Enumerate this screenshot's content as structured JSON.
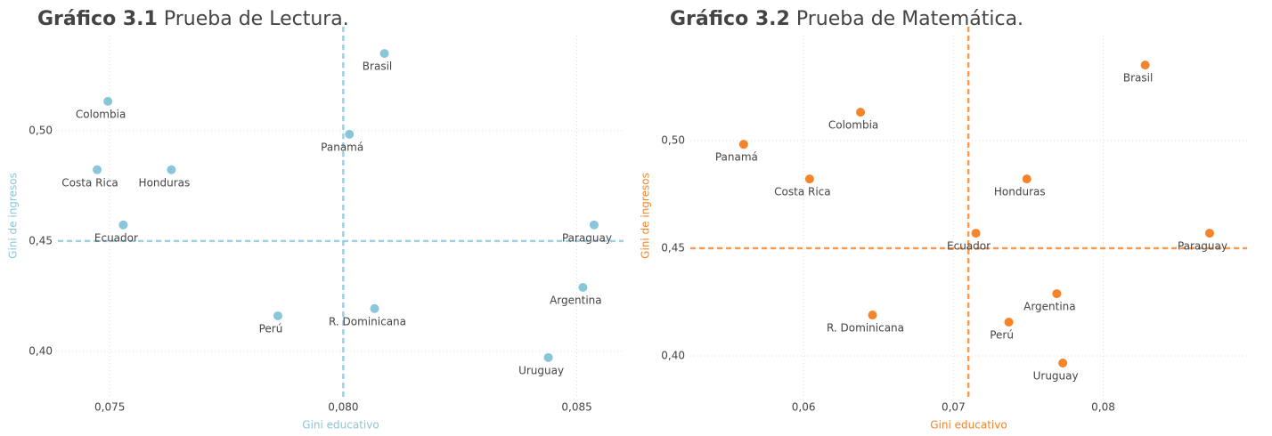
{
  "chart_data": [
    {
      "type": "scatter",
      "title_number": "Gráfico 3.1",
      "title": "Prueba de Lectura.",
      "xlabel": "Gini educativo",
      "ylabel": "Gini de ingresos",
      "color": "#8ac6d9",
      "labels": [
        "Brasil",
        "Colombia",
        "Panamá",
        "Costa Rica",
        "Honduras",
        "Ecuador",
        "Paraguay",
        "Argentina",
        "R. Dominicana",
        "Perú",
        "Uruguay"
      ],
      "x": [
        0.08088,
        0.07496,
        0.08013,
        0.07473,
        0.07632,
        0.07529,
        0.08537,
        0.08513,
        0.08067,
        0.0786,
        0.08439
      ],
      "y": [
        0.535,
        0.5133,
        0.4984,
        0.4823,
        0.4823,
        0.4573,
        0.4573,
        0.429,
        0.4194,
        0.4161,
        0.3972
      ],
      "xlim": [
        0.07389,
        0.086
      ],
      "ylim": [
        0.3798,
        0.5431
      ],
      "xticks": [
        {
          "value": 0.075,
          "label": "0,075"
        },
        {
          "value": 0.08,
          "label": "0,080"
        },
        {
          "value": 0.085,
          "label": "0,085"
        }
      ],
      "yticks": [
        {
          "value": 0.4,
          "label": "0,40"
        },
        {
          "value": 0.45,
          "label": "0,45"
        },
        {
          "value": 0.5,
          "label": "0,50"
        }
      ],
      "reference_x": 0.08,
      "reference_y": 0.45,
      "grid": true
    },
    {
      "type": "scatter",
      "title_number": "Gráfico 3.2",
      "title": "Prueba de Matemática.",
      "xlabel": "Gini educativo",
      "ylabel": "Gini de ingresos",
      "color": "#f5842a",
      "labels": [
        "Brasil",
        "Colombia",
        "Panamá",
        "Costa Rica",
        "Honduras",
        "Ecuador",
        "Paraguay",
        "Argentina",
        "R. Dominicana",
        "Perú",
        "Uruguay"
      ],
      "x": [
        0.0828,
        0.0638,
        0.056,
        0.0604,
        0.0749,
        0.0715,
        0.0871,
        0.0769,
        0.0646,
        0.0737,
        0.0773
      ],
      "y": [
        0.5351,
        0.5132,
        0.4983,
        0.4822,
        0.4822,
        0.457,
        0.457,
        0.4289,
        0.419,
        0.4157,
        0.3967
      ],
      "xlim": [
        0.05244,
        0.0896
      ],
      "ylim": [
        0.3814,
        0.5488
      ],
      "xticks": [
        {
          "value": 0.06,
          "label": "0,06"
        },
        {
          "value": 0.07,
          "label": "0,07"
        },
        {
          "value": 0.08,
          "label": "0,08"
        }
      ],
      "yticks": [
        {
          "value": 0.4,
          "label": "0,40"
        },
        {
          "value": 0.45,
          "label": "0,45"
        },
        {
          "value": 0.5,
          "label": "0,50"
        }
      ],
      "reference_x": 0.071,
      "reference_y": 0.45,
      "grid": true
    }
  ]
}
